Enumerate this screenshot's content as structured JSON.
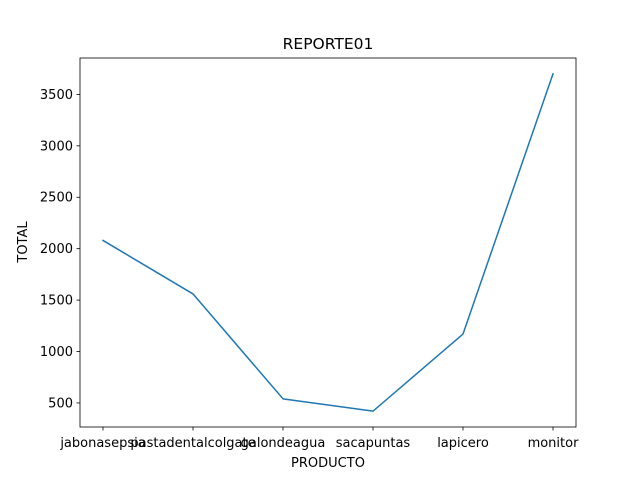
{
  "chart_data": {
    "type": "line",
    "title": "REPORTE01",
    "xlabel": "PRODUCTO",
    "ylabel": "TOTAL",
    "categories": [
      "jabonasepsia",
      "pastadentalcolgate",
      "galondeagua",
      "sacapuntas",
      "lapicero",
      "monitor"
    ],
    "series": [
      {
        "values": [
          2080,
          1560,
          540,
          420,
          1170,
          3700
        ]
      }
    ],
    "yticks": [
      500,
      1000,
      1500,
      2000,
      2500,
      3000,
      3500
    ],
    "ylim": [
      266,
      3854
    ],
    "grid": false,
    "line_color": "#1f77b4"
  }
}
